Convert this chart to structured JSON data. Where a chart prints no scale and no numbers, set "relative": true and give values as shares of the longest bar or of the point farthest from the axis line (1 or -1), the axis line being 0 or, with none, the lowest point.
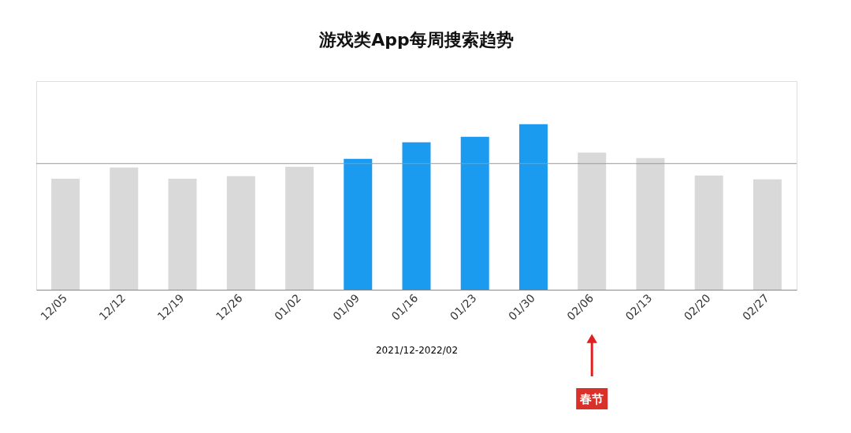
{
  "chart_data": {
    "type": "bar",
    "title": "游戏类App每周搜索趋势",
    "xlabel": "2021/12-2022/02",
    "relative": true,
    "categories": [
      "12/05",
      "12/12",
      "12/19",
      "12/26",
      "01/02",
      "01/09",
      "01/16",
      "01/23",
      "01/30",
      "02/06",
      "02/13",
      "02/20",
      "02/27"
    ],
    "values": [
      0.671,
      0.738,
      0.671,
      0.686,
      0.743,
      0.79,
      0.89,
      0.924,
      1,
      0.829,
      0.795,
      0.69,
      0.667
    ],
    "colors": [
      "#d9d9d9",
      "#d9d9d9",
      "#d9d9d9",
      "#d9d9d9",
      "#d9d9d9",
      "#1a9bf0",
      "#1a9bf0",
      "#1a9bf0",
      "#1a9bf0",
      "#d9d9d9",
      "#d9d9d9",
      "#d9d9d9",
      "#d9d9d9"
    ],
    "ref_lines": [
      {
        "axis": "y",
        "value": 0.762,
        "color": "#999999"
      }
    ],
    "annotations": [
      "春节"
    ],
    "grid": false
  }
}
